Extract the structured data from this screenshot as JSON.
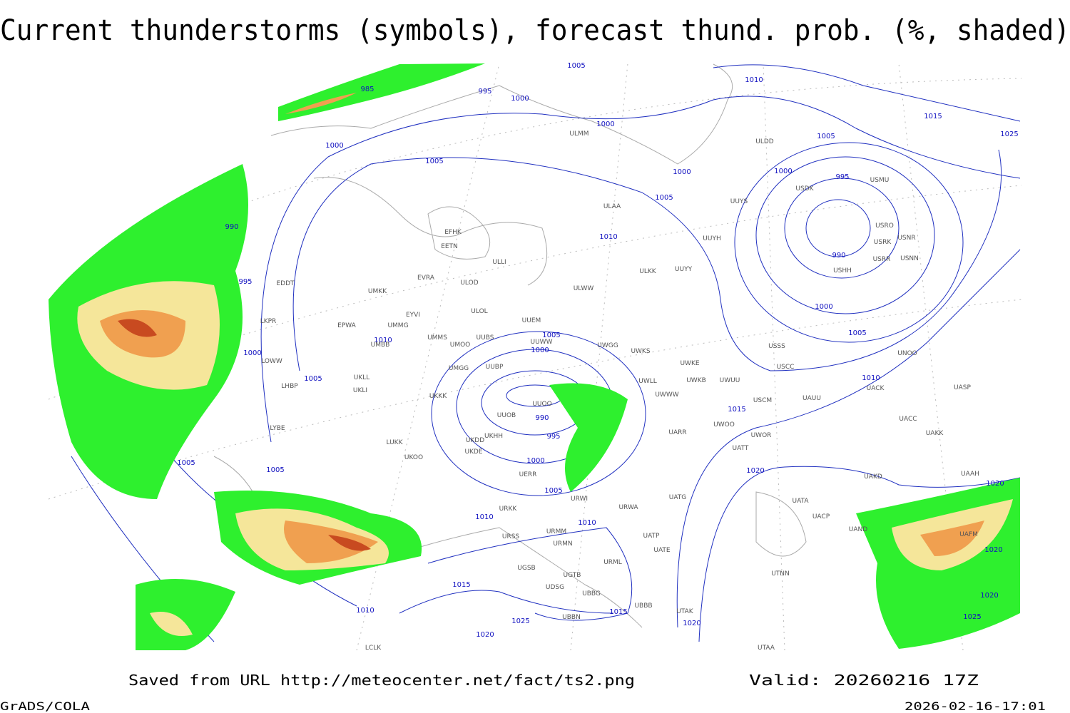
{
  "header": {
    "title": "Current thunderstorms (symbols), forecast thund. prob. (%, shaded)"
  },
  "isobar_labels": [
    1005,
    985,
    995,
    1000,
    1010,
    1000,
    1015,
    1025,
    1005,
    1000,
    1005,
    1000,
    995,
    1000,
    1005,
    990,
    1010,
    990,
    995,
    1000,
    1005,
    1010,
    1005,
    1000,
    1000,
    1005,
    1010,
    990,
    995,
    1015,
    1005,
    1000,
    1005,
    1020,
    1020,
    1005,
    1010,
    1010,
    1020,
    1015,
    1020,
    1010,
    1015,
    1025,
    1025,
    1020,
    1020
  ],
  "stations": [
    "ULMM",
    "ULDD",
    "UUYS",
    "ULAA",
    "UUYH",
    "USDK",
    "USMU",
    "USRO",
    "USRK",
    "USNR",
    "USRR",
    "USNN",
    "USHH",
    "EFHK",
    "EETN",
    "ULLI",
    "EVRA",
    "ULOD",
    "ULOL",
    "ULKK",
    "UUYY",
    "ULWW",
    "UMKK",
    "EDDT",
    "EYVI",
    "UMMG",
    "EPWA",
    "UUEM",
    "UMMS",
    "UUBS",
    "UUWW",
    "UMOO",
    "UWGG",
    "UWKS",
    "UMBB",
    "USSS",
    "UWKE",
    "UWKB",
    "UWUU",
    "USCC",
    "UNOO",
    "UMGG",
    "UUBP",
    "UKLL",
    "UKLI",
    "UKKK",
    "UUOO",
    "UWLL",
    "UWWW",
    "USCM",
    "UAUU",
    "UACK",
    "UASP",
    "UUOB",
    "UKHH",
    "UKDD",
    "UKDE",
    "UKOO",
    "LUKK",
    "UARR",
    "UWOO",
    "UWOR",
    "UATT",
    "UACC",
    "UAKK",
    "UERR",
    "UAKD",
    "UAAH",
    "URWI",
    "UATG",
    "URKK",
    "URWA",
    "UATA",
    "UACP",
    "URMM",
    "URMN",
    "URSS",
    "UATE",
    "UATP",
    "UAND",
    "URML",
    "UGSB",
    "UGTB",
    "UTNN",
    "UDSG",
    "UBBG",
    "UBBB",
    "UBBN",
    "UTAK",
    "UTAA",
    "LCLK",
    "LKPR",
    "LOWW",
    "LHBP",
    "LYBE",
    "UAFM"
  ],
  "footer": {
    "source": "Saved from URL http://meteocenter.net/fact/ts2.png",
    "valid": "Valid: 20260216 17Z",
    "software": "GrADS/COLA",
    "timestamp": "2026-02-16-17:01"
  }
}
